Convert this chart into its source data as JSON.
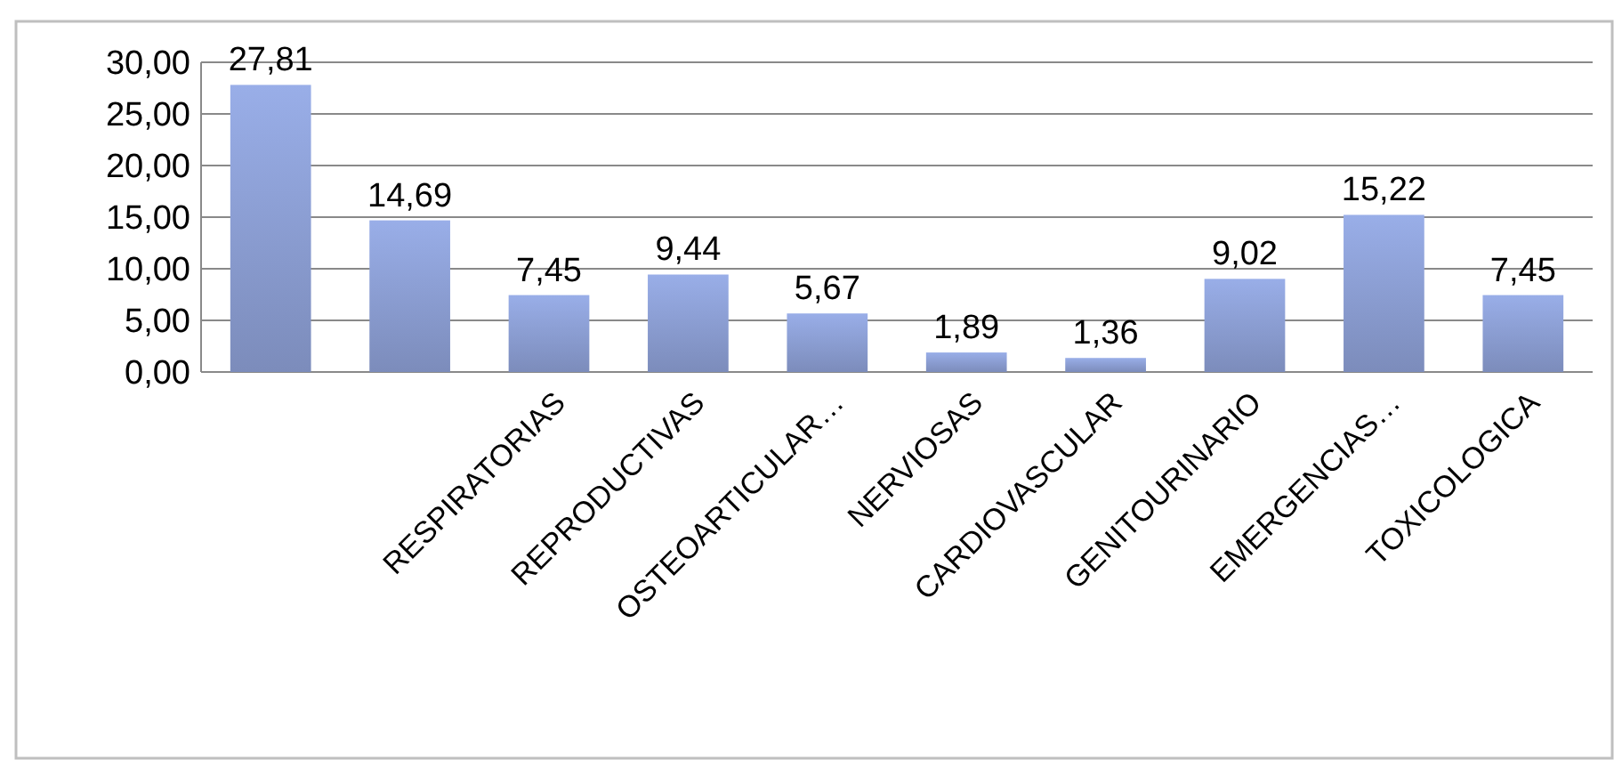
{
  "chart_data": {
    "type": "bar",
    "categories": [
      null,
      null,
      "RESPIRATORIAS",
      "REPRODUCTIVAS",
      "OSTEOARTICULAR…",
      "NERVIOSAS",
      "CARDIOVASCULAR",
      "GENITOURINARIO",
      "EMERGENCIAS…",
      "TOXICOLOGICA"
    ],
    "values": [
      27.81,
      14.69,
      7.45,
      9.44,
      5.67,
      1.89,
      1.36,
      9.02,
      15.22,
      7.45
    ],
    "value_labels": [
      "27,81",
      "14,69",
      "7,45",
      "9,44",
      "5,67",
      "1,89",
      "1,36",
      "9,02",
      "15,22",
      "7,45"
    ],
    "color": "#8c9fd4",
    "ylim": [
      0,
      30
    ],
    "yticks": [
      {
        "value": 0,
        "label": "0,00"
      },
      {
        "value": 5,
        "label": "5,00"
      },
      {
        "value": 10,
        "label": "10,00"
      },
      {
        "value": 15,
        "label": "15,00"
      },
      {
        "value": 20,
        "label": "20,00"
      },
      {
        "value": 25,
        "label": "25,00"
      },
      {
        "value": 30,
        "label": "30,00"
      }
    ],
    "grid": "y"
  }
}
